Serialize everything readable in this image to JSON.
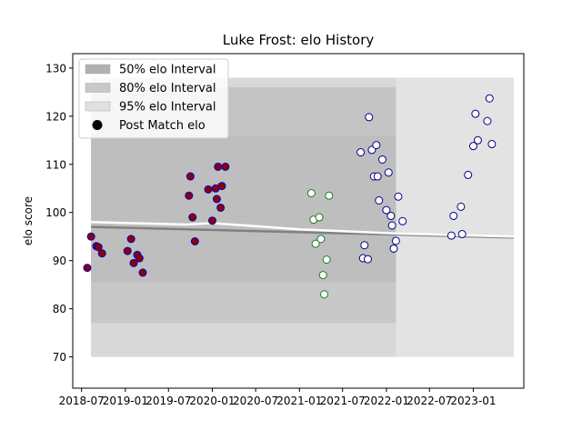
{
  "chart_data": {
    "type": "scatter",
    "title": "Luke Frost: elo History",
    "xlabel": "",
    "ylabel": "elo score",
    "xlim": [
      "2018-05-25",
      "2023-08-01"
    ],
    "ylim": [
      63.5,
      133
    ],
    "x_ticks": [
      "2018-07",
      "2019-01",
      "2019-07",
      "2020-01",
      "2020-07",
      "2021-01",
      "2021-07",
      "2022-01",
      "2022-07",
      "2023-01"
    ],
    "y_ticks": [
      70,
      80,
      90,
      100,
      110,
      120,
      130
    ],
    "grid": false,
    "legend": {
      "position": "top-left",
      "entries": [
        {
          "label": "50% elo Interval",
          "color": "#b0b0b0"
        },
        {
          "label": "80% elo Interval",
          "color": "#c8c8c8"
        },
        {
          "label": "95% elo Interval",
          "color": "#e0e0e0"
        },
        {
          "label": "Post Match elo",
          "color": "#000000"
        }
      ]
    },
    "intervals": {
      "x_range": [
        "2018-08-10",
        "2022-02-10"
      ],
      "x_range_wide": [
        "2018-08-10",
        "2023-06-20"
      ],
      "interval_50": [
        85.5,
        126
      ],
      "interval_80": [
        77,
        116
      ],
      "interval_95": [
        70,
        128
      ]
    },
    "trend_lines": [
      {
        "name": "mean",
        "color": "#808080",
        "points": [
          [
            "2018-08-10",
            97
          ],
          [
            "2023-06-20",
            94.8
          ]
        ]
      },
      {
        "name": "running",
        "color": "#ffffff",
        "points": [
          [
            "2018-08-10",
            98
          ],
          [
            "2019-09-15",
            97.5
          ],
          [
            "2020-01-01",
            97.8
          ],
          [
            "2021-01-01",
            96.5
          ],
          [
            "2022-03-01",
            95.6
          ],
          [
            "2023-06-20",
            95.0
          ]
        ]
      }
    ],
    "series": [
      {
        "face": "#8b0000",
        "edge": "#0000cd",
        "points": [
          [
            "2018-07-25",
            88.5
          ],
          [
            "2018-08-10",
            95
          ],
          [
            "2018-09-01",
            93
          ],
          [
            "2018-09-10",
            92.8
          ],
          [
            "2018-09-25",
            91.5
          ],
          [
            "2019-01-10",
            92
          ],
          [
            "2019-01-25",
            94.5
          ],
          [
            "2019-02-05",
            89.5
          ],
          [
            "2019-02-20",
            91.2
          ],
          [
            "2019-03-01",
            90.5
          ],
          [
            "2019-03-15",
            87.5
          ],
          [
            "2019-09-25",
            103.5
          ],
          [
            "2019-10-01",
            107.5
          ],
          [
            "2019-10-10",
            99
          ],
          [
            "2019-10-20",
            94
          ],
          [
            "2019-12-15",
            104.8
          ],
          [
            "2020-01-01",
            98.3
          ],
          [
            "2020-01-15",
            105
          ],
          [
            "2020-01-20",
            102.8
          ],
          [
            "2020-01-25",
            109.5
          ],
          [
            "2020-02-05",
            101
          ],
          [
            "2020-02-10",
            105.5
          ],
          [
            "2020-02-25",
            109.5
          ]
        ]
      },
      {
        "face": "#ffffff",
        "edge": "#1e7a1e",
        "points": [
          [
            "2021-02-20",
            104
          ],
          [
            "2021-03-01",
            98.5
          ],
          [
            "2021-03-10",
            93.5
          ],
          [
            "2021-03-25",
            99
          ],
          [
            "2021-04-01",
            94.5
          ],
          [
            "2021-04-10",
            87
          ],
          [
            "2021-04-15",
            83
          ],
          [
            "2021-04-25",
            90.2
          ],
          [
            "2021-05-05",
            103.5
          ]
        ]
      },
      {
        "face": "#ffffff",
        "edge": "#00008b",
        "points": [
          [
            "2021-09-15",
            112.5
          ],
          [
            "2021-09-25",
            90.5
          ],
          [
            "2021-10-01",
            93.2
          ],
          [
            "2021-10-15",
            90.3
          ],
          [
            "2021-10-20",
            119.8
          ],
          [
            "2021-11-01",
            113
          ],
          [
            "2021-11-10",
            107.5
          ],
          [
            "2021-11-20",
            114
          ],
          [
            "2021-11-25",
            107.5
          ],
          [
            "2021-12-01",
            102.5
          ],
          [
            "2021-12-15",
            111
          ],
          [
            "2022-01-01",
            100.5
          ],
          [
            "2022-01-10",
            108.3
          ],
          [
            "2022-01-20",
            99.3
          ],
          [
            "2022-01-25",
            97.3
          ],
          [
            "2022-02-01",
            92.5
          ],
          [
            "2022-02-10",
            94.1
          ],
          [
            "2022-02-20",
            103.3
          ],
          [
            "2022-03-10",
            98.2
          ],
          [
            "2022-10-01",
            95.2
          ],
          [
            "2022-10-10",
            99.3
          ],
          [
            "2022-11-10",
            101.2
          ],
          [
            "2022-11-15",
            95.5
          ],
          [
            "2022-12-10",
            107.8
          ],
          [
            "2023-01-01",
            113.8
          ],
          [
            "2023-01-10",
            120.5
          ],
          [
            "2023-01-20",
            115
          ],
          [
            "2023-03-01",
            119
          ],
          [
            "2023-03-10",
            123.7
          ],
          [
            "2023-03-20",
            114.2
          ]
        ]
      }
    ]
  }
}
